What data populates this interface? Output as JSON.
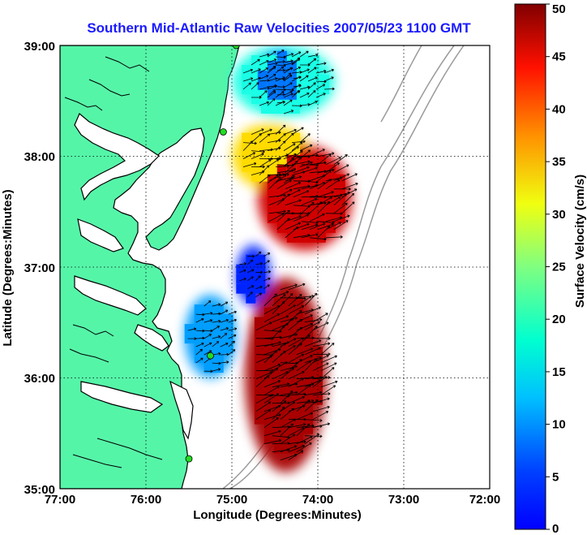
{
  "title": "Southern Mid-Atlantic Raw Velocities 2007/05/23 1100 GMT",
  "x_axis": {
    "label": "Longitude (Degrees:Minutes)",
    "ticks": [
      "77:00",
      "76:00",
      "75:00",
      "74:00",
      "73:00",
      "72:00"
    ]
  },
  "y_axis": {
    "label": "Latitude (Degrees:Minutes)",
    "ticks": [
      "39:00",
      "38:00",
      "37:00",
      "36:00",
      "35:00"
    ]
  },
  "colorbar": {
    "label": "Surface Velocity (cm/s)",
    "ticks": [
      "50",
      "45",
      "40",
      "35",
      "30",
      "25",
      "20",
      "15",
      "10",
      "5",
      "0"
    ],
    "min": 0,
    "max": 50,
    "colormap": "jet"
  },
  "colors": {
    "land": "#55f5a8",
    "water": "#ffffff",
    "title": "#1a1aff",
    "station": "#22dd22",
    "arrows": "#000000",
    "grid": "#000000",
    "bathymetry": "#9a9a9a"
  },
  "chart_data": {
    "type": "heatmap",
    "title": "Southern Mid-Atlantic Raw Velocities 2007/05/23 1100 GMT",
    "xlabel": "Longitude (Degrees:Minutes)",
    "ylabel": "Latitude (Degrees:Minutes)",
    "xlim": [
      -77.0,
      -72.0
    ],
    "ylim": [
      35.0,
      39.0
    ],
    "grid": true,
    "colorbar_range": [
      0,
      50
    ],
    "colorbar_label": "Surface Velocity (cm/s)",
    "stations": [
      {
        "lon": -74.95,
        "lat": 39.0
      },
      {
        "lon": -75.1,
        "lat": 38.22
      },
      {
        "lon": -75.25,
        "lat": 36.2
      },
      {
        "lon": -75.5,
        "lat": 35.27
      }
    ],
    "regions": [
      {
        "name": "northern-green",
        "speed": 20,
        "lon": [
          -75.0,
          -73.8
        ],
        "lat": [
          38.35,
          39.0
        ]
      },
      {
        "name": "northern-cyan",
        "speed": 12,
        "lon": [
          -74.7,
          -74.2
        ],
        "lat": [
          38.45,
          38.95
        ]
      },
      {
        "name": "delmarva-orange",
        "speed": 33,
        "lon": [
          -75.0,
          -74.1
        ],
        "lat": [
          37.7,
          38.3
        ]
      },
      {
        "name": "offshore-red-north",
        "speed": 46,
        "lon": [
          -74.7,
          -73.6
        ],
        "lat": [
          37.15,
          38.1
        ]
      },
      {
        "name": "mouth-blue",
        "speed": 8,
        "lon": [
          -74.95,
          -74.55
        ],
        "lat": [
          36.65,
          37.2
        ]
      },
      {
        "name": "southern-cyan",
        "speed": 14,
        "lon": [
          -75.55,
          -74.95
        ],
        "lat": [
          36.0,
          36.75
        ]
      },
      {
        "name": "southern-red",
        "speed": 48,
        "lon": [
          -74.85,
          -73.9
        ],
        "lat": [
          35.15,
          36.9
        ]
      }
    ]
  }
}
